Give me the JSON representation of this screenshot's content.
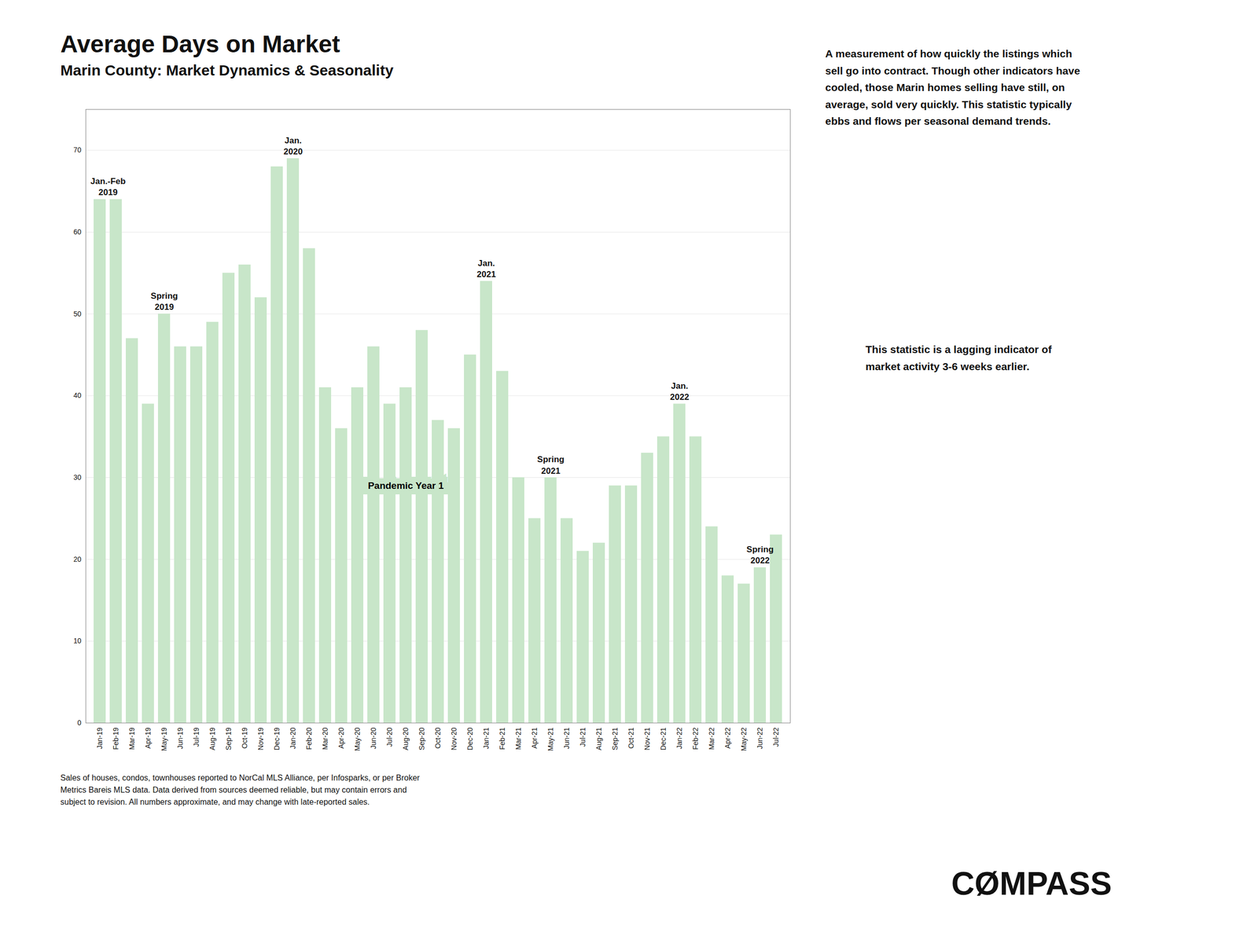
{
  "chart_data": {
    "type": "bar",
    "title": "Average Days on Market",
    "subtitle": "Marin County: Market Dynamics & Seasonality",
    "categories": [
      "Jan-19",
      "Feb-19",
      "Mar-19",
      "Apr-19",
      "May-19",
      "Jun-19",
      "Jul-19",
      "Aug-19",
      "Sep-19",
      "Oct-19",
      "Nov-19",
      "Dec-19",
      "Jan-20",
      "Feb-20",
      "Mar-20",
      "Apr-20",
      "May-20",
      "Jun-20",
      "Jul-20",
      "Aug-20",
      "Sep-20",
      "Oct-20",
      "Nov-20",
      "Dec-20",
      "Jan-21",
      "Feb-21",
      "Mar-21",
      "Apr-21",
      "May-21",
      "Jun-21",
      "Jul-21",
      "Aug-21",
      "Sep-21",
      "Oct-21",
      "Nov-21",
      "Dec-21",
      "Jan-22",
      "Feb-22",
      "Mar-22",
      "Apr-22",
      "May-22",
      "Jun-22",
      "Jul-22"
    ],
    "values": [
      64,
      64,
      47,
      39,
      50,
      46,
      46,
      49,
      55,
      56,
      52,
      68,
      69,
      58,
      41,
      36,
      41,
      46,
      39,
      41,
      48,
      37,
      36,
      45,
      54,
      43,
      30,
      25,
      30,
      25,
      21,
      22,
      29,
      29,
      33,
      35,
      39,
      35,
      24,
      18,
      17,
      19,
      23
    ],
    "color": "#c8e6c9",
    "ylim": [
      0,
      75
    ],
    "yticks": [
      0,
      10,
      20,
      30,
      40,
      50,
      60,
      70
    ],
    "grid": true,
    "annotations": [
      {
        "text": "Jan.-Feb\n2019",
        "categories": [
          "Jan-19",
          "Feb-19"
        ]
      },
      {
        "text": "Spring\n2019",
        "category": "May-19"
      },
      {
        "text": "Jan.\n2020",
        "category": "Jan-20"
      },
      {
        "text": "Jan.\n2021",
        "category": "Jan-21"
      },
      {
        "text": "Spring\n2021",
        "category": "May-21"
      },
      {
        "text": "Jan.\n2022",
        "category": "Jan-22"
      },
      {
        "text": "Spring\n2022",
        "category": "Jun-22"
      }
    ],
    "callout": {
      "text": "Pandemic Year 1",
      "category": "Aug-20",
      "y": 29
    },
    "notes": [
      "A measurement of how quickly the listings which\nsell go into contract. Though other indicators have\ncooled, those Marin homes selling have still, on\naverage, sold very quickly. This statistic typically\nebbs and flows per seasonal demand trends.",
      "This statistic is a lagging indicator of\nmarket activity 3-6 weeks earlier."
    ],
    "footer": "Sales of houses, condos, townhouses reported to NorCal MLS Alliance, per Infosparks, or per Broker\nMetrics Bareis MLS data. Data derived from sources deemed reliable, but may contain errors and\nsubject to revision. All numbers approximate, and may change with late-reported sales.",
    "logo": "CØMPASS"
  }
}
